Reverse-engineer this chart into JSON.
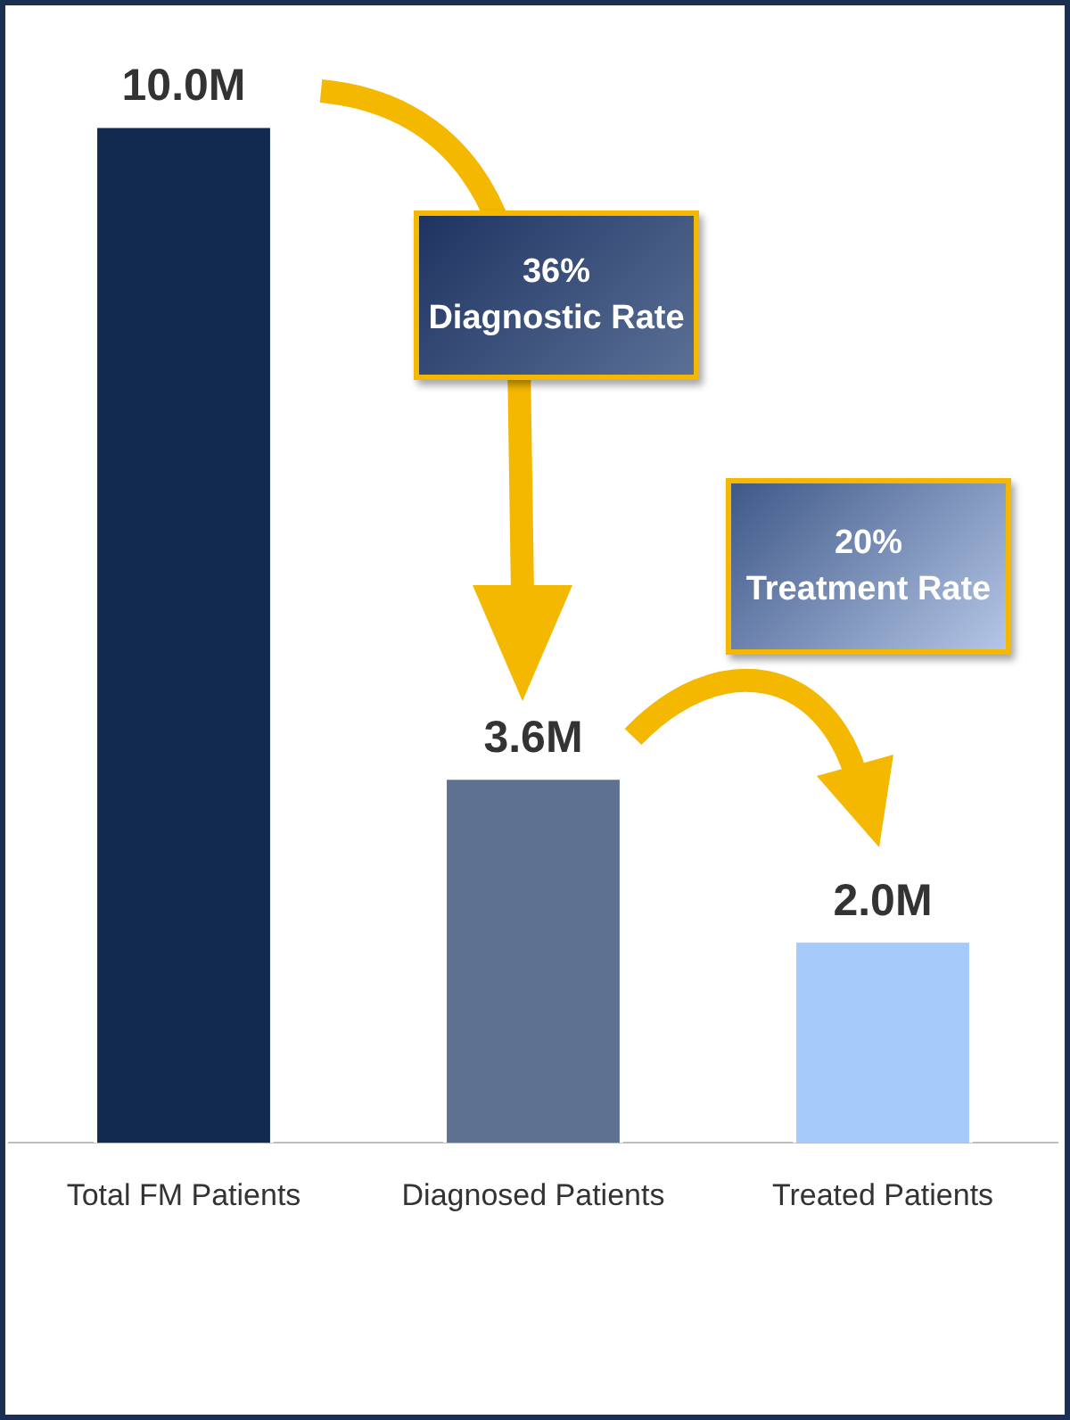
{
  "chart_data": {
    "type": "bar",
    "categories": [
      "Total FM Patients",
      "Diagnosed Patients",
      "Treated Patients"
    ],
    "values": [
      10.0,
      3.6,
      2.0
    ],
    "colors": [
      "#132a50",
      "#5f7191",
      "#a6cbfb"
    ],
    "value_labels": [
      "10.0M",
      "3.6M",
      "2.0M"
    ],
    "annotations": [
      "36%\nDiagnostic Rate",
      "20%\nTreatment Rate"
    ]
  }
}
